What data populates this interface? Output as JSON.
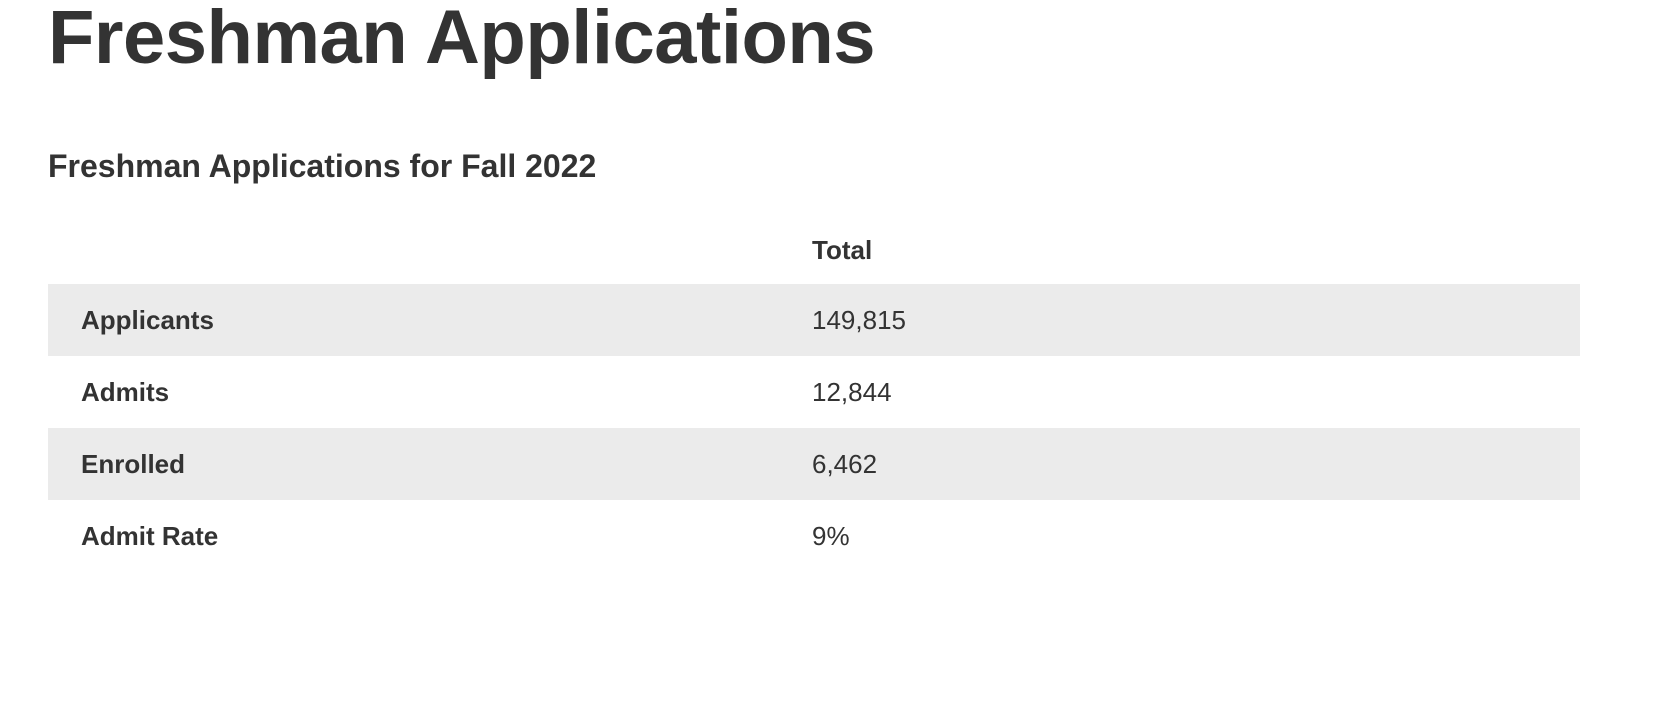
{
  "header": {
    "title": "Freshman Applications"
  },
  "section": {
    "title": "Freshman Applications for Fall 2022"
  },
  "table": {
    "columns": [
      "Total"
    ],
    "rows": [
      [
        "Applicants",
        "149,815"
      ],
      [
        "Admits",
        "12,844"
      ],
      [
        "Enrolled",
        "6,462"
      ],
      [
        "Admit Rate",
        "9%"
      ]
    ]
  }
}
